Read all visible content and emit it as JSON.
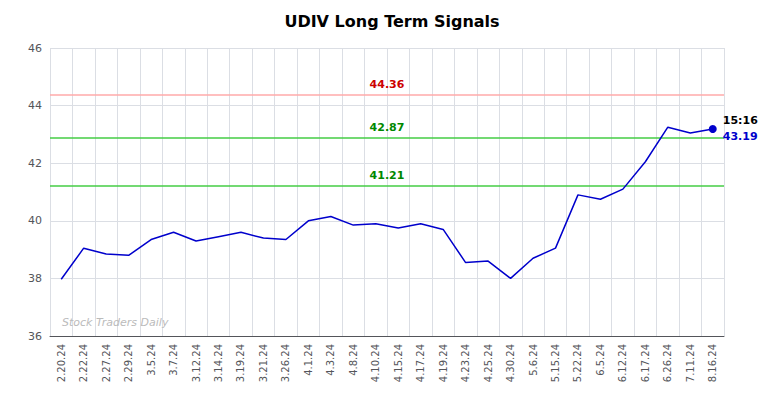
{
  "chart_data": {
    "type": "line",
    "title": "UDIV Long Term Signals",
    "categories": [
      "2.20.24",
      "2.22.24",
      "2.27.24",
      "2.29.24",
      "3.5.24",
      "3.7.24",
      "3.12.24",
      "3.14.24",
      "3.19.24",
      "3.21.24",
      "3.26.24",
      "4.1.24",
      "4.3.24",
      "4.8.24",
      "4.10.24",
      "4.15.24",
      "4.17.24",
      "4.19.24",
      "4.23.24",
      "4.25.24",
      "4.30.24",
      "5.6.24",
      "5.15.24",
      "5.22.24",
      "6.5.24",
      "6.12.24",
      "6.17.24",
      "6.26.24",
      "7.11.24",
      "8.16.24"
    ],
    "values": [
      37.97,
      39.05,
      38.85,
      38.8,
      39.35,
      39.6,
      39.3,
      39.45,
      39.6,
      39.4,
      39.35,
      40.0,
      40.15,
      39.85,
      39.9,
      39.75,
      39.9,
      39.7,
      38.55,
      38.6,
      38.0,
      38.7,
      39.05,
      40.9,
      40.75,
      41.1,
      42.05,
      43.25,
      43.05,
      43.19
    ],
    "color": "#0000cc",
    "hlines": [
      {
        "value": 44.36,
        "label": "44.36",
        "color": "#ffaaaa",
        "label_color": "#cc0000"
      },
      {
        "value": 42.87,
        "label": "42.87",
        "color": "#44cc44",
        "label_color": "#008800"
      },
      {
        "value": 41.21,
        "label": "41.21",
        "color": "#44cc44",
        "label_color": "#008800"
      }
    ],
    "last_point": {
      "time_label": "15:16",
      "value_label": "43.19",
      "value_color": "#0000cc"
    },
    "watermark": "Stock Traders Daily",
    "ylim": [
      36,
      46
    ],
    "yticks": [
      36,
      38,
      40,
      42,
      44,
      46
    ],
    "grid": true
  }
}
